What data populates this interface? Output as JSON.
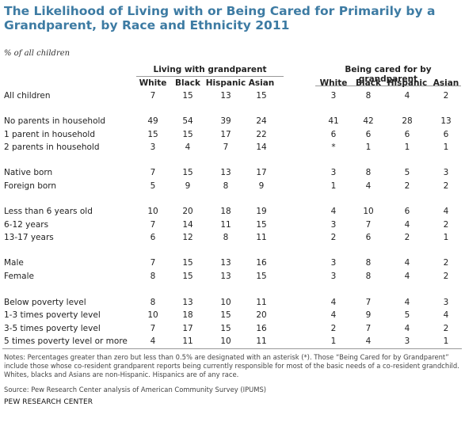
{
  "title": "The Likelihood of Living with or Being Cared for Primarily by a Grandparent, by Race and Ethnicity 2011",
  "subtitle": "% of all children",
  "group_headers": [
    "Living with grandparent",
    "Being cared for by grandparent"
  ],
  "column_headers": [
    "White",
    "Black",
    "Hispanic",
    "Asian",
    "White",
    "Black",
    "Hispanic",
    "Asian"
  ],
  "rows": [
    {
      "label": "All children",
      "values": [
        "7",
        "15",
        "13",
        "15",
        "3",
        "8",
        "4",
        "2"
      ]
    },
    {
      "label": "No parents in household",
      "values": [
        "49",
        "54",
        "39",
        "24",
        "41",
        "42",
        "28",
        "13"
      ]
    },
    {
      "label": "1 parent in household",
      "values": [
        "15",
        "15",
        "17",
        "22",
        "6",
        "6",
        "6",
        "6"
      ]
    },
    {
      "label": "2 parents in household",
      "values": [
        "3",
        "4",
        "7",
        "14",
        "*",
        "1",
        "1",
        "1"
      ]
    },
    {
      "label": "Native born",
      "values": [
        "7",
        "15",
        "13",
        "17",
        "3",
        "8",
        "5",
        "3"
      ]
    },
    {
      "label": "Foreign born",
      "values": [
        "5",
        "9",
        "8",
        "9",
        "1",
        "4",
        "2",
        "2"
      ]
    },
    {
      "label": "Less than 6 years old",
      "values": [
        "10",
        "20",
        "18",
        "19",
        "4",
        "10",
        "6",
        "4"
      ]
    },
    {
      "label": "6-12 years",
      "values": [
        "7",
        "14",
        "11",
        "15",
        "3",
        "7",
        "4",
        "2"
      ]
    },
    {
      "label": "13-17 years",
      "values": [
        "6",
        "12",
        "8",
        "11",
        "2",
        "6",
        "2",
        "1"
      ]
    },
    {
      "label": "Male",
      "values": [
        "7",
        "15",
        "13",
        "16",
        "3",
        "8",
        "4",
        "2"
      ]
    },
    {
      "label": "Female",
      "values": [
        "8",
        "15",
        "13",
        "15",
        "3",
        "8",
        "4",
        "2"
      ]
    },
    {
      "label": "Below poverty level",
      "values": [
        "8",
        "13",
        "10",
        "11",
        "4",
        "7",
        "4",
        "3"
      ]
    },
    {
      "label": "1-3 times poverty level",
      "values": [
        "10",
        "18",
        "15",
        "20",
        "4",
        "9",
        "5",
        "4"
      ]
    },
    {
      "label": "3-5 times poverty level",
      "values": [
        "7",
        "17",
        "15",
        "16",
        "2",
        "7",
        "4",
        "2"
      ]
    },
    {
      "label": "5 times poverty level or more",
      "values": [
        "4",
        "11",
        "10",
        "11",
        "1",
        "4",
        "3",
        "1"
      ]
    }
  ],
  "notes": "Notes: Percentages greater than zero but less than 0.5% are designated with an asterisk (*). Those “Being Cared for by Grandparent” include those whose co-resident grandparent reports being currently responsible for most of the basic needs of a co-resident grandchild. Whites, blacks and Asians are non-Hispanic. Hispanics are of any race.",
  "source": "Source: Pew Research Center analysis of American Community Survey (IPUMS)",
  "credit": "PEW RESEARCH CENTER"
}
